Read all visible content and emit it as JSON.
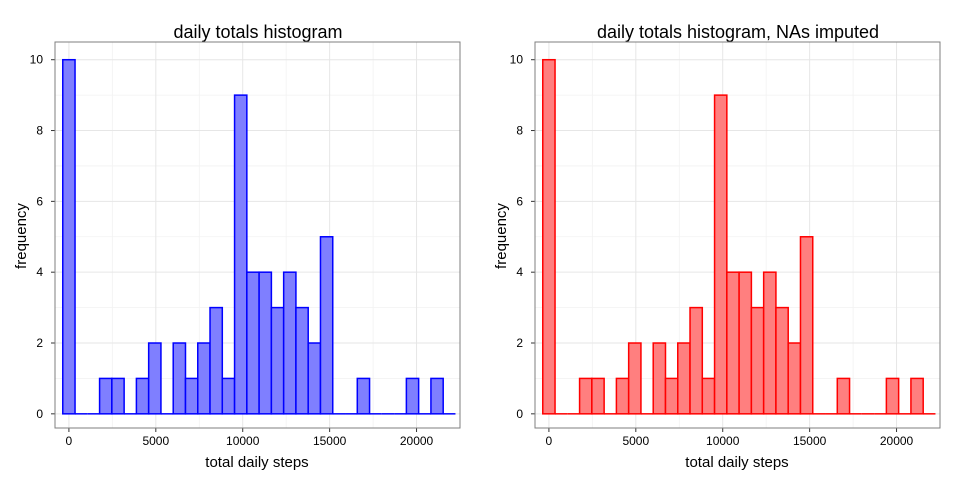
{
  "chart_data": [
    {
      "type": "bar",
      "title": "daily totals histogram",
      "xlabel": "total daily steps",
      "ylabel": "frequency",
      "x_ticks": [
        "0",
        "5000",
        "10000",
        "15000",
        "20000"
      ],
      "y_ticks": [
        "0",
        "2",
        "4",
        "6",
        "8",
        "10"
      ],
      "xlim": [
        -800,
        22500
      ],
      "ylim": [
        -0.4,
        10.5
      ],
      "bin_width": 706,
      "bin_starts": [
        -353,
        353,
        1059,
        1765,
        2471,
        3177,
        3883,
        4589,
        5295,
        6001,
        6707,
        7413,
        8119,
        8825,
        9531,
        10237,
        10943,
        11649,
        12355,
        13061,
        13767,
        14473,
        15179,
        15885,
        16591,
        17297,
        18003,
        18709,
        19415,
        20121,
        20827,
        21533
      ],
      "counts": [
        10,
        0,
        0,
        1,
        1,
        0,
        1,
        2,
        0,
        2,
        1,
        2,
        3,
        1,
        9,
        4,
        4,
        3,
        4,
        3,
        2,
        5,
        0,
        0,
        1,
        0,
        0,
        0,
        1,
        0,
        1,
        0
      ],
      "fill_color": "#7f7fff",
      "edge_color": "#0000ff",
      "grid": true,
      "background": "#ffffff"
    },
    {
      "type": "bar",
      "title": "daily totals histogram, NAs imputed",
      "xlabel": "total daily steps",
      "ylabel": "frequency",
      "x_ticks": [
        "0",
        "5000",
        "10000",
        "15000",
        "20000"
      ],
      "y_ticks": [
        "0",
        "2",
        "4",
        "6",
        "8",
        "10"
      ],
      "xlim": [
        -800,
        22500
      ],
      "ylim": [
        -0.4,
        10.5
      ],
      "bin_width": 706,
      "bin_starts": [
        -353,
        353,
        1059,
        1765,
        2471,
        3177,
        3883,
        4589,
        5295,
        6001,
        6707,
        7413,
        8119,
        8825,
        9531,
        10237,
        10943,
        11649,
        12355,
        13061,
        13767,
        14473,
        15179,
        15885,
        16591,
        17297,
        18003,
        18709,
        19415,
        20121,
        20827,
        21533
      ],
      "counts": [
        10,
        0,
        0,
        1,
        1,
        0,
        1,
        2,
        0,
        2,
        1,
        2,
        3,
        1,
        9,
        4,
        4,
        3,
        4,
        3,
        2,
        5,
        0,
        0,
        1,
        0,
        0,
        0,
        1,
        0,
        1,
        0
      ],
      "fill_color": "#ff7f7f",
      "edge_color": "#ff0000",
      "grid": true,
      "background": "#ffffff"
    }
  ]
}
